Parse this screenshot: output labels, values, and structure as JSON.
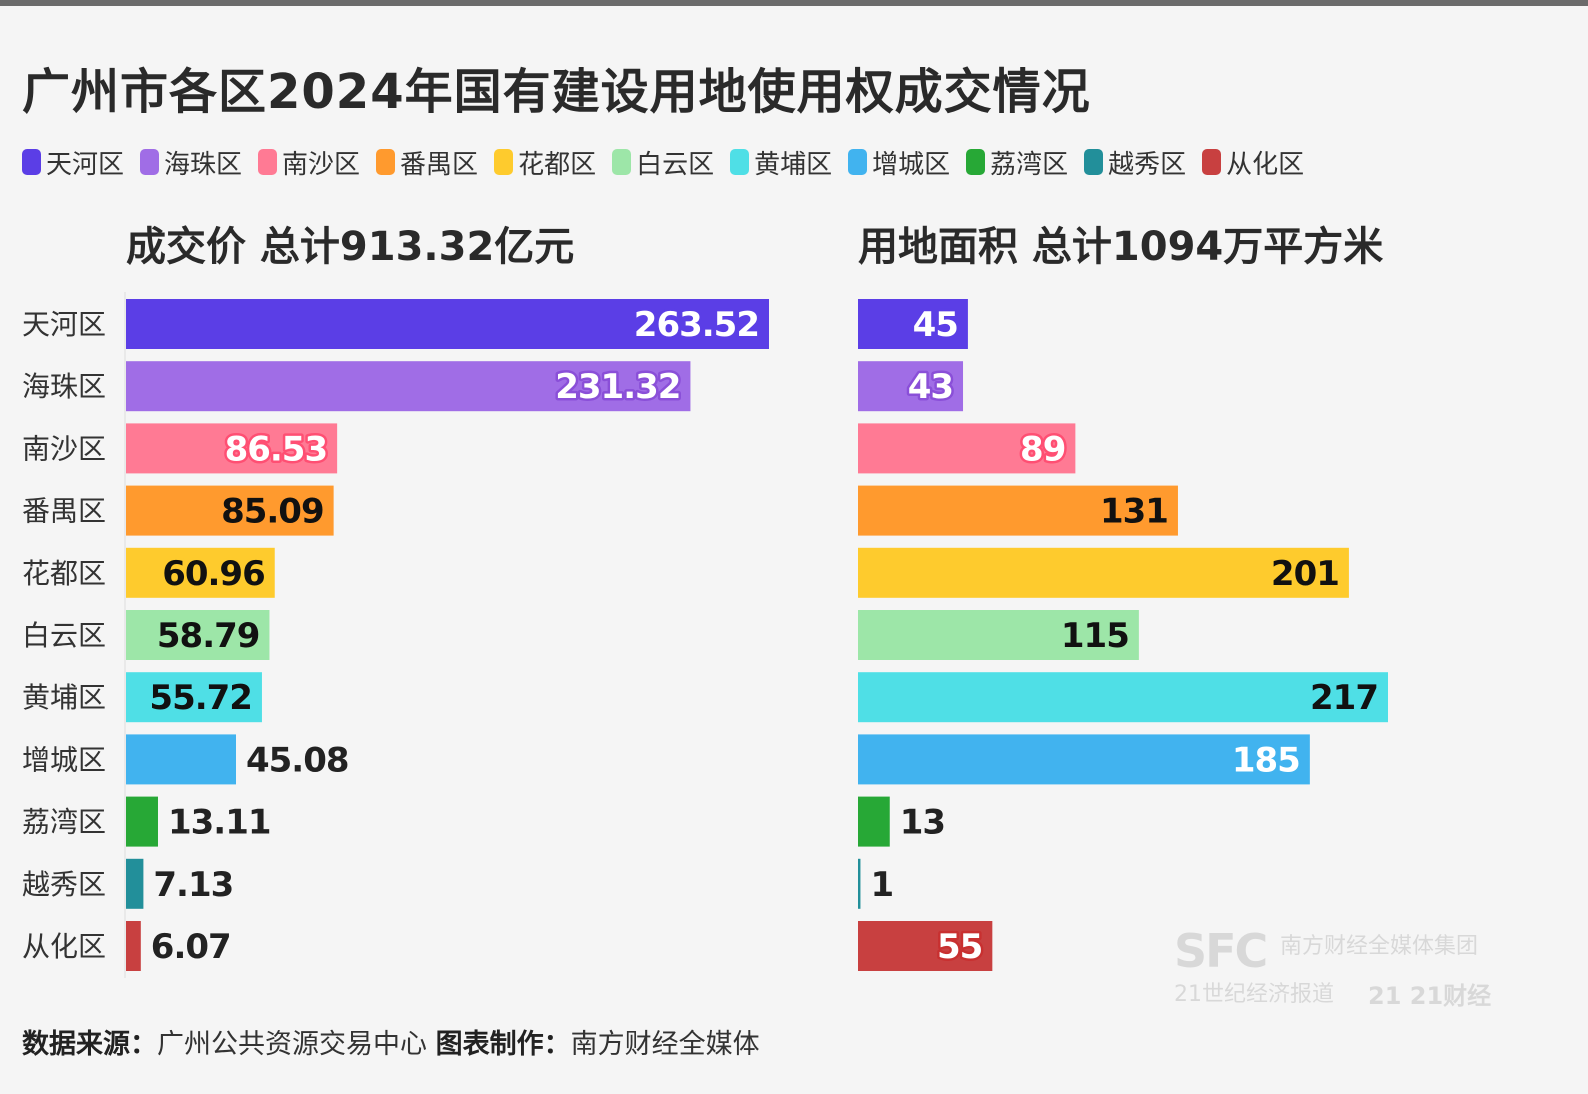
{
  "title": "广州市各区2024年国有建设用地使用权成交情况",
  "legend": [
    {
      "label": "天河区",
      "color": "#5b3ee6"
    },
    {
      "label": "海珠区",
      "color": "#a06de6"
    },
    {
      "label": "南沙区",
      "color": "#ff7a94"
    },
    {
      "label": "番禺区",
      "color": "#ff9a2e"
    },
    {
      "label": "花都区",
      "color": "#fecb2d"
    },
    {
      "label": "白云区",
      "color": "#9de6a8"
    },
    {
      "label": "黄埔区",
      "color": "#4fdfe6"
    },
    {
      "label": "增城区",
      "color": "#41b3ef"
    },
    {
      "label": "荔湾区",
      "color": "#27a836"
    },
    {
      "label": "越秀区",
      "color": "#228f9a"
    },
    {
      "label": "从化区",
      "color": "#c84040"
    }
  ],
  "chart_data": [
    {
      "type": "bar",
      "orientation": "horizontal",
      "title": "成交价 总计913.32亿元",
      "categories": [
        "天河区",
        "海珠区",
        "南沙区",
        "番禺区",
        "花都区",
        "白云区",
        "黄埔区",
        "增城区",
        "荔湾区",
        "越秀区",
        "从化区"
      ],
      "values": [
        263.52,
        231.32,
        86.53,
        85.09,
        60.96,
        58.79,
        55.72,
        45.08,
        13.11,
        7.13,
        6.07
      ],
      "labels": [
        "263.52",
        "231.32",
        "86.53",
        "85.09",
        "60.96",
        "58.79",
        "55.72",
        "45.08",
        "13.11",
        "7.13",
        "6.07"
      ],
      "xlim": [
        0,
        263.52
      ]
    },
    {
      "type": "bar",
      "orientation": "horizontal",
      "title": "用地面积 总计1094万平方米",
      "categories": [
        "天河区",
        "海珠区",
        "南沙区",
        "番禺区",
        "花都区",
        "白云区",
        "黄埔区",
        "增城区",
        "荔湾区",
        "越秀区",
        "从化区"
      ],
      "values": [
        45,
        43,
        89,
        131,
        201,
        115,
        217,
        185,
        13,
        1,
        55
      ],
      "labels": [
        "45",
        "43",
        "89",
        "131",
        "201",
        "115",
        "217",
        "185",
        "13",
        "1",
        "55"
      ],
      "xlim": [
        0,
        217
      ]
    }
  ],
  "label_style": [
    {
      "fill": "#ffffff",
      "outline": "#5b3ee6"
    },
    {
      "fill": "#ffffff",
      "outline": "#8a4fd8"
    },
    {
      "fill": "#ffffff",
      "outline": "#ff4f73"
    },
    {
      "fill": "#111111",
      "outline": "#ff9a2e"
    },
    {
      "fill": "#111111",
      "outline": "#fecb2d"
    },
    {
      "fill": "#111111",
      "outline": "#9de6a8"
    },
    {
      "fill": "#111111",
      "outline": "#4fdfe6"
    },
    {
      "fill": "#ffffff",
      "outline": "#41b3ef"
    },
    {
      "fill": "#222222",
      "outline": "none"
    },
    {
      "fill": "#222222",
      "outline": "none"
    },
    {
      "fill": "#ffffff",
      "outline": "#c83030"
    }
  ],
  "footer": {
    "source_label": "数据来源：",
    "source": "广州公共资源交易中心",
    "maker_label": "图表制作：",
    "maker": "南方财经全媒体"
  },
  "watermark": {
    "sfc": "SFC",
    "org": "南方财经全媒体集团",
    "paper": "21世纪经济报道",
    "brand": "21 21财经"
  }
}
